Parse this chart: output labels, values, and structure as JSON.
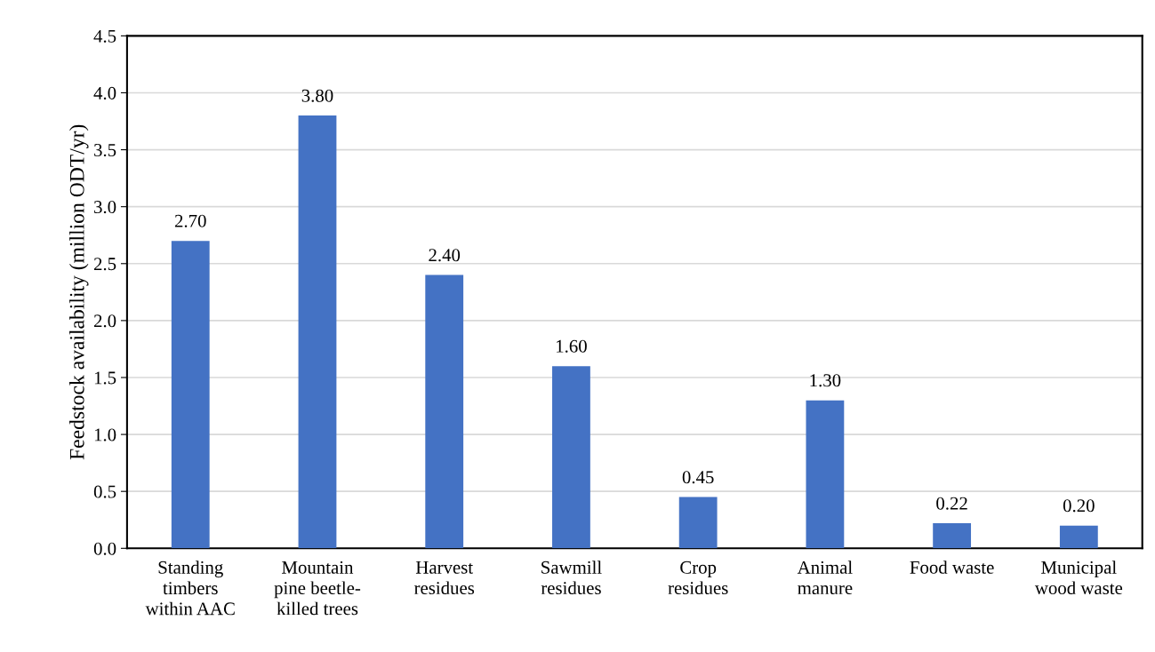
{
  "chart_data": {
    "type": "bar",
    "ylabel": "Feedstock availability (million ODT/yr)",
    "categories": [
      "Standing\ntimbers\nwithin AAC",
      "Mountain\npine beetle-\nkilled trees",
      "Harvest\nresidues",
      "Sawmill\nresidues",
      "Crop\nresidues",
      "Animal\nmanure",
      "Food waste",
      "Municipal\nwood waste"
    ],
    "values": [
      2.7,
      3.8,
      2.4,
      1.6,
      0.45,
      1.3,
      0.22,
      0.2
    ],
    "value_labels": [
      "2.70",
      "3.80",
      "2.40",
      "1.60",
      "0.45",
      "1.30",
      "0.22",
      "0.20"
    ],
    "color": "#4472c4",
    "ylim": [
      0,
      4.5
    ],
    "yticks": [
      {
        "value": 0,
        "label": "0.0"
      },
      {
        "value": 0.5,
        "label": "0.5"
      },
      {
        "value": 1.0,
        "label": "1.0"
      },
      {
        "value": 1.5,
        "label": "1.5"
      },
      {
        "value": 2.0,
        "label": "2.0"
      },
      {
        "value": 2.5,
        "label": "2.5"
      },
      {
        "value": 3.0,
        "label": "3.0"
      },
      {
        "value": 3.5,
        "label": "3.5"
      },
      {
        "value": 4.0,
        "label": "4.0"
      },
      {
        "value": 4.5,
        "label": "4.5"
      }
    ],
    "grid": "y"
  }
}
